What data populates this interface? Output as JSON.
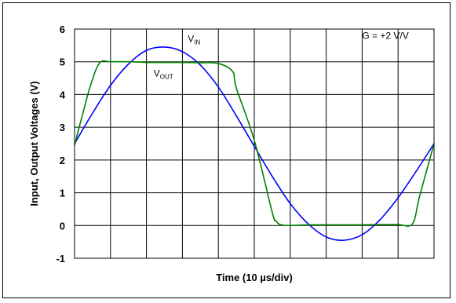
{
  "chart_data": {
    "type": "line",
    "title": "",
    "xlabel": "Time (10 µs/div)",
    "ylabel": "Input, Output Voltages (V)",
    "ylim": [
      -1,
      6
    ],
    "xlim": [
      0,
      10
    ],
    "yticks": [
      "6",
      "5",
      "4",
      "3",
      "2",
      "1",
      "0",
      "-1"
    ],
    "grid": true,
    "legend": "none",
    "annotations": {
      "gain": "G = +2 V/V",
      "vin_main": "V",
      "vin_sub": "IN",
      "vout_main": "V",
      "vout_sub": "OUT"
    },
    "series": [
      {
        "key": "vin",
        "color": "#0000ff",
        "x": [
          0,
          0.5,
          1,
          1.5,
          2,
          2.5,
          3,
          3.5,
          4,
          4.5,
          5,
          5.5,
          6,
          6.5,
          7,
          7.5,
          8,
          8.5,
          9,
          9.5,
          10
        ],
        "y": [
          2.5,
          3.43,
          4.28,
          4.93,
          5.35,
          5.45,
          5.31,
          4.9,
          4.23,
          3.35,
          2.42,
          1.5,
          0.67,
          0.05,
          -0.35,
          -0.45,
          -0.28,
          0.18,
          0.85,
          1.65,
          2.5
        ]
      },
      {
        "key": "vout",
        "color": "#008000",
        "x": [
          0,
          0.2,
          0.45,
          0.7,
          1,
          1.5,
          2,
          2.5,
          3,
          3.5,
          4,
          4.4,
          4.5,
          5,
          5.5,
          5.6,
          5.8,
          6.5,
          7,
          7.5,
          8,
          8.5,
          9,
          9.4,
          9.6,
          10
        ],
        "y": [
          2.45,
          3.3,
          4.3,
          4.97,
          5.0,
          5.0,
          4.98,
          4.98,
          4.98,
          4.97,
          4.95,
          4.7,
          4.2,
          2.6,
          0.4,
          0.15,
          0.01,
          0.02,
          0.02,
          0.02,
          0.02,
          0.03,
          0.03,
          0.05,
          0.9,
          2.5
        ]
      }
    ]
  }
}
